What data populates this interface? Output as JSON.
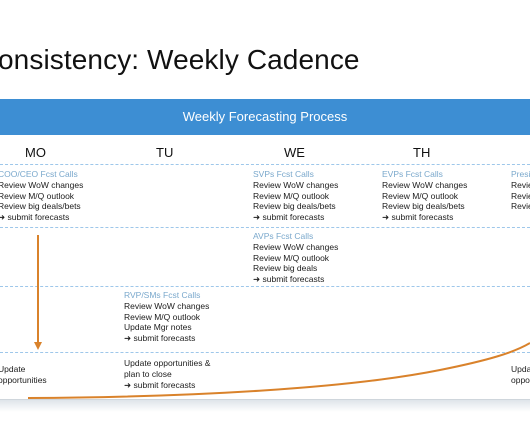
{
  "title": "onsistency: Weekly Cadence",
  "banner": "Weekly Forecasting Process",
  "days": [
    "MO",
    "TU",
    "WE",
    "TH"
  ],
  "cells": [
    {
      "id": "mo-row1",
      "header": "COO/CEO Fcst Calls",
      "lines": [
        "Review WoW changes",
        "Review M/Q outlook",
        "Review big deals/bets"
      ],
      "sub": "➜ submit forecasts"
    },
    {
      "id": "we-row1",
      "header": "SVPs Fcst Calls",
      "lines": [
        "Review WoW changes",
        "Review M/Q outlook",
        "Review big deals/bets"
      ],
      "sub": "➜ submit forecasts"
    },
    {
      "id": "th-row1",
      "header": "EVPs Fcst Calls",
      "lines": [
        "Review WoW changes",
        "Review M/Q outlook",
        "Review big deals/bets"
      ],
      "sub": "➜ submit forecasts"
    },
    {
      "id": "fr-row1",
      "header": "Presi",
      "lines": [
        "Revie",
        "Revie",
        "Revie"
      ],
      "sub": ""
    },
    {
      "id": "we-row2",
      "header": "AVPs Fcst Calls",
      "lines": [
        "Review WoW changes",
        "Review M/Q outlook",
        "Review big deals"
      ],
      "sub": "➜ submit forecasts"
    },
    {
      "id": "tu-row3",
      "header": "RVP/SMs Fcst Calls",
      "lines": [
        "Review WoW changes",
        "Review M/Q outlook",
        "Update Mgr notes"
      ],
      "sub": "➜ submit forecasts"
    },
    {
      "id": "mo-row4",
      "header": "",
      "lines": [
        "Update",
        "opportunities"
      ],
      "sub": ""
    },
    {
      "id": "tu-row4",
      "header": "",
      "lines": [
        "Update opportunities &",
        "plan to close"
      ],
      "sub": "➜ submit forecasts"
    },
    {
      "id": "fr-row4",
      "header": "",
      "lines": [
        "Upda",
        "oppo"
      ],
      "sub": ""
    }
  ],
  "colors": {
    "banner": "#3d8ed3",
    "arrow": "#d9822b",
    "divider": "#9ec7ea",
    "header_text": "#7aa8cc"
  }
}
